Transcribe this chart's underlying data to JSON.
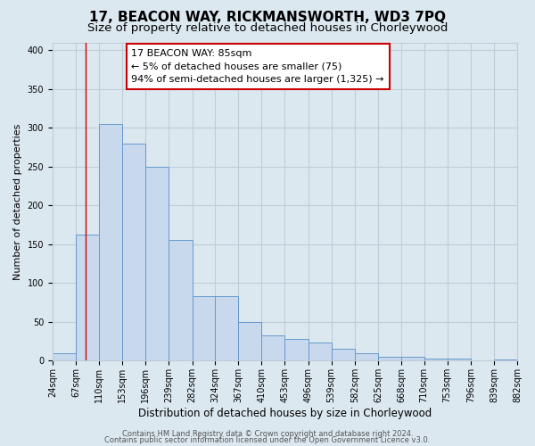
{
  "title": "17, BEACON WAY, RICKMANSWORTH, WD3 7PQ",
  "subtitle": "Size of property relative to detached houses in Chorleywood",
  "xlabel": "Distribution of detached houses by size in Chorleywood",
  "ylabel": "Number of detached properties",
  "bar_left_edges": [
    24,
    67,
    110,
    153,
    196,
    239,
    282,
    324,
    367,
    410,
    453,
    496,
    539,
    582,
    625,
    668,
    710,
    753,
    796,
    839
  ],
  "bar_heights": [
    10,
    163,
    305,
    280,
    250,
    155,
    83,
    83,
    50,
    33,
    28,
    23,
    15,
    10,
    5,
    5,
    3,
    3,
    1,
    2
  ],
  "bin_width": 43,
  "tick_labels": [
    "24sqm",
    "67sqm",
    "110sqm",
    "153sqm",
    "196sqm",
    "239sqm",
    "282sqm",
    "324sqm",
    "367sqm",
    "410sqm",
    "453sqm",
    "496sqm",
    "539sqm",
    "582sqm",
    "625sqm",
    "668sqm",
    "710sqm",
    "753sqm",
    "796sqm",
    "839sqm",
    "882sqm"
  ],
  "bar_color": "#c8d9ee",
  "bar_edge_color": "#6699cc",
  "property_line_x": 85,
  "annotation_line1": "17 BEACON WAY: 85sqm",
  "annotation_line2": "← 5% of detached houses are smaller (75)",
  "annotation_line3": "94% of semi-detached houses are larger (1,325) →",
  "annotation_box_color": "#ffffff",
  "annotation_box_edge_color": "#cc0000",
  "ylim": [
    0,
    410
  ],
  "yticks": [
    0,
    50,
    100,
    150,
    200,
    250,
    300,
    350,
    400
  ],
  "grid_color": "#c0ccd8",
  "bg_color": "#dce8f0",
  "footer1": "Contains HM Land Registry data © Crown copyright and database right 2024.",
  "footer2": "Contains public sector information licensed under the Open Government Licence v3.0.",
  "title_fontsize": 11,
  "subtitle_fontsize": 9.5,
  "xlabel_fontsize": 8.5,
  "ylabel_fontsize": 8,
  "tick_fontsize": 7,
  "annotation_fontsize": 8,
  "footer_fontsize": 6
}
